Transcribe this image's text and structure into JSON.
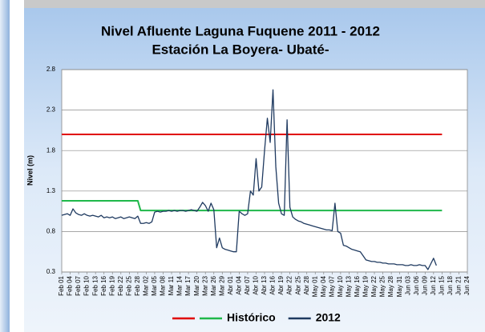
{
  "chart_data": {
    "type": "line",
    "title": "Nivel Afluente Laguna Fuquene 2011 - 2012",
    "subtitle": "Estación La Boyera- Ubaté-",
    "y_label": "Nivel (m)",
    "categories": [
      "Feb 01",
      null,
      null,
      "Feb 04",
      null,
      null,
      "Feb 07",
      null,
      null,
      "Feb 10",
      null,
      null,
      "Feb 13",
      null,
      null,
      "Feb 16",
      null,
      null,
      "Feb 19",
      null,
      null,
      "Feb 22",
      null,
      null,
      "Feb 25",
      null,
      null,
      "Feb 28",
      null,
      null,
      "Mar 02",
      null,
      null,
      "Mar 05",
      null,
      null,
      "Mar 08",
      null,
      null,
      "Mar 11",
      null,
      null,
      "Mar 14",
      null,
      null,
      "Mar 17",
      null,
      null,
      "Mar 20",
      null,
      null,
      "Mar 23",
      null,
      null,
      "Mar 26",
      null,
      null,
      "Mar 29",
      null,
      null,
      "Abr 01",
      null,
      null,
      "Abr 04",
      null,
      null,
      "Abr 07",
      null,
      null,
      "Abr 10",
      null,
      null,
      "Abr 13",
      null,
      null,
      "Abr 16",
      null,
      null,
      "Abr 19",
      null,
      null,
      "Abr 22",
      null,
      null,
      "Abr 25",
      null,
      null,
      "Abr 28",
      null,
      null,
      "May 01",
      null,
      null,
      "May 04",
      null,
      null,
      "May 07",
      null,
      null,
      "May 10",
      null,
      null,
      "May 13",
      null,
      null,
      "May 16",
      null,
      null,
      "May 19",
      null,
      null,
      "May 22",
      null,
      null,
      "May 25",
      null,
      null,
      "May 28",
      null,
      null,
      "May 31",
      null,
      null,
      "Jun 03",
      null,
      null,
      "Jun 06",
      null,
      null,
      "Jun 09",
      null,
      null,
      "Jun 12",
      null,
      null,
      "Jun 15",
      null,
      null,
      "Jun 18",
      null,
      null,
      "Jun 21",
      null,
      null,
      "Jun 24"
    ],
    "ylim": [
      0.3,
      2.8
    ],
    "yticks": [
      0.3,
      0.8,
      1.3,
      1.8,
      2.3,
      2.8
    ],
    "grid": true,
    "series": [
      {
        "color": "#e00000",
        "values": [
          2,
          2,
          2,
          2,
          2,
          2,
          2,
          2,
          2,
          2,
          2,
          2,
          2,
          2,
          2,
          2,
          2,
          2,
          2,
          2,
          2,
          2,
          2,
          2,
          2,
          2,
          2,
          2,
          2,
          2,
          2,
          2,
          2,
          2,
          2,
          2,
          2,
          2,
          2,
          2,
          2,
          2,
          2,
          2,
          2,
          2,
          2,
          2,
          2,
          2,
          2,
          2,
          2,
          2,
          2,
          2,
          2,
          2,
          2,
          2,
          2,
          2,
          2,
          2,
          2,
          2,
          2,
          2,
          2,
          2,
          2,
          2,
          2,
          2,
          2,
          2,
          2,
          2,
          2,
          2,
          2,
          2,
          2,
          2,
          2,
          2,
          2,
          2,
          2,
          2,
          2,
          2,
          2,
          2,
          2,
          2,
          2,
          2,
          2,
          2,
          2,
          2,
          2,
          2,
          2,
          2,
          2,
          2,
          2,
          2,
          2,
          2,
          2,
          2,
          2,
          2,
          2,
          2,
          2,
          2,
          2,
          2,
          2,
          2,
          2,
          2,
          2,
          2,
          2,
          2,
          2,
          2,
          2,
          2,
          2,
          2,
          null,
          null,
          null,
          null,
          null,
          null,
          null,
          null,
          null
        ]
      },
      {
        "name": "Histórico",
        "color": "#1fb84a",
        "values": [
          1.18,
          1.18,
          1.18,
          1.18,
          1.18,
          1.18,
          1.18,
          1.18,
          1.18,
          1.18,
          1.18,
          1.18,
          1.18,
          1.18,
          1.18,
          1.18,
          1.18,
          1.18,
          1.18,
          1.18,
          1.18,
          1.18,
          1.18,
          1.18,
          1.18,
          1.18,
          1.18,
          1.18,
          1.06,
          1.06,
          1.06,
          1.06,
          1.06,
          1.06,
          1.06,
          1.06,
          1.06,
          1.06,
          1.06,
          1.06,
          1.06,
          1.06,
          1.06,
          1.06,
          1.06,
          1.06,
          1.06,
          1.06,
          1.06,
          1.06,
          1.06,
          1.06,
          1.06,
          1.06,
          1.06,
          1.06,
          1.06,
          1.06,
          1.06,
          1.06,
          1.06,
          1.06,
          1.06,
          1.06,
          1.06,
          1.06,
          1.06,
          1.06,
          1.06,
          1.06,
          1.06,
          1.06,
          1.06,
          1.06,
          1.06,
          1.06,
          1.06,
          1.06,
          1.06,
          1.06,
          1.06,
          1.06,
          1.06,
          1.06,
          1.06,
          1.06,
          1.06,
          1.06,
          1.06,
          1.06,
          1.06,
          1.06,
          1.06,
          1.06,
          1.06,
          1.06,
          1.06,
          1.06,
          1.06,
          1.06,
          1.06,
          1.06,
          1.06,
          1.06,
          1.06,
          1.06,
          1.06,
          1.06,
          1.06,
          1.06,
          1.06,
          1.06,
          1.06,
          1.06,
          1.06,
          1.06,
          1.06,
          1.06,
          1.06,
          1.06,
          1.06,
          1.06,
          1.06,
          1.06,
          1.06,
          1.06,
          1.06,
          1.06,
          1.06,
          1.06,
          1.06,
          1.06,
          1.06,
          1.06,
          1.06,
          1.06,
          null,
          null,
          null,
          null,
          null,
          null,
          null,
          null,
          null
        ]
      },
      {
        "name": "2012",
        "color": "#1f3a60",
        "values": [
          1.0,
          1.01,
          1.02,
          1.0,
          1.08,
          1.03,
          1.01,
          1.0,
          1.02,
          1.0,
          0.99,
          1.0,
          0.99,
          0.98,
          1.0,
          0.97,
          0.98,
          0.97,
          0.98,
          0.96,
          0.97,
          0.98,
          0.96,
          0.97,
          0.98,
          0.97,
          0.96,
          0.99,
          0.9,
          0.9,
          0.91,
          0.9,
          0.92,
          1.04,
          1.05,
          1.04,
          1.05,
          1.05,
          1.06,
          1.05,
          1.06,
          1.05,
          1.06,
          1.06,
          1.05,
          1.06,
          1.07,
          1.06,
          1.05,
          1.1,
          1.16,
          1.12,
          1.05,
          1.15,
          1.07,
          0.6,
          0.72,
          0.6,
          0.58,
          0.57,
          0.56,
          0.55,
          0.55,
          1.05,
          1.02,
          1.0,
          1.02,
          1.3,
          1.25,
          1.7,
          1.3,
          1.35,
          1.8,
          2.2,
          1.9,
          2.55,
          1.6,
          1.15,
          1.02,
          1.0,
          2.18,
          1.1,
          0.98,
          0.95,
          0.93,
          0.92,
          0.9,
          0.89,
          0.88,
          0.87,
          0.86,
          0.85,
          0.84,
          0.83,
          0.82,
          0.82,
          0.81,
          1.15,
          0.8,
          0.78,
          0.63,
          0.62,
          0.6,
          0.58,
          0.57,
          0.56,
          0.55,
          0.5,
          0.45,
          0.44,
          0.43,
          0.43,
          0.42,
          0.42,
          0.41,
          0.41,
          0.4,
          0.4,
          0.4,
          0.39,
          0.39,
          0.39,
          0.38,
          0.38,
          0.39,
          0.38,
          0.38,
          0.39,
          0.38,
          0.38,
          0.33,
          0.4,
          0.47,
          0.38,
          null,
          null,
          null,
          null,
          null,
          null,
          null,
          null,
          null,
          null,
          null
        ]
      }
    ]
  }
}
